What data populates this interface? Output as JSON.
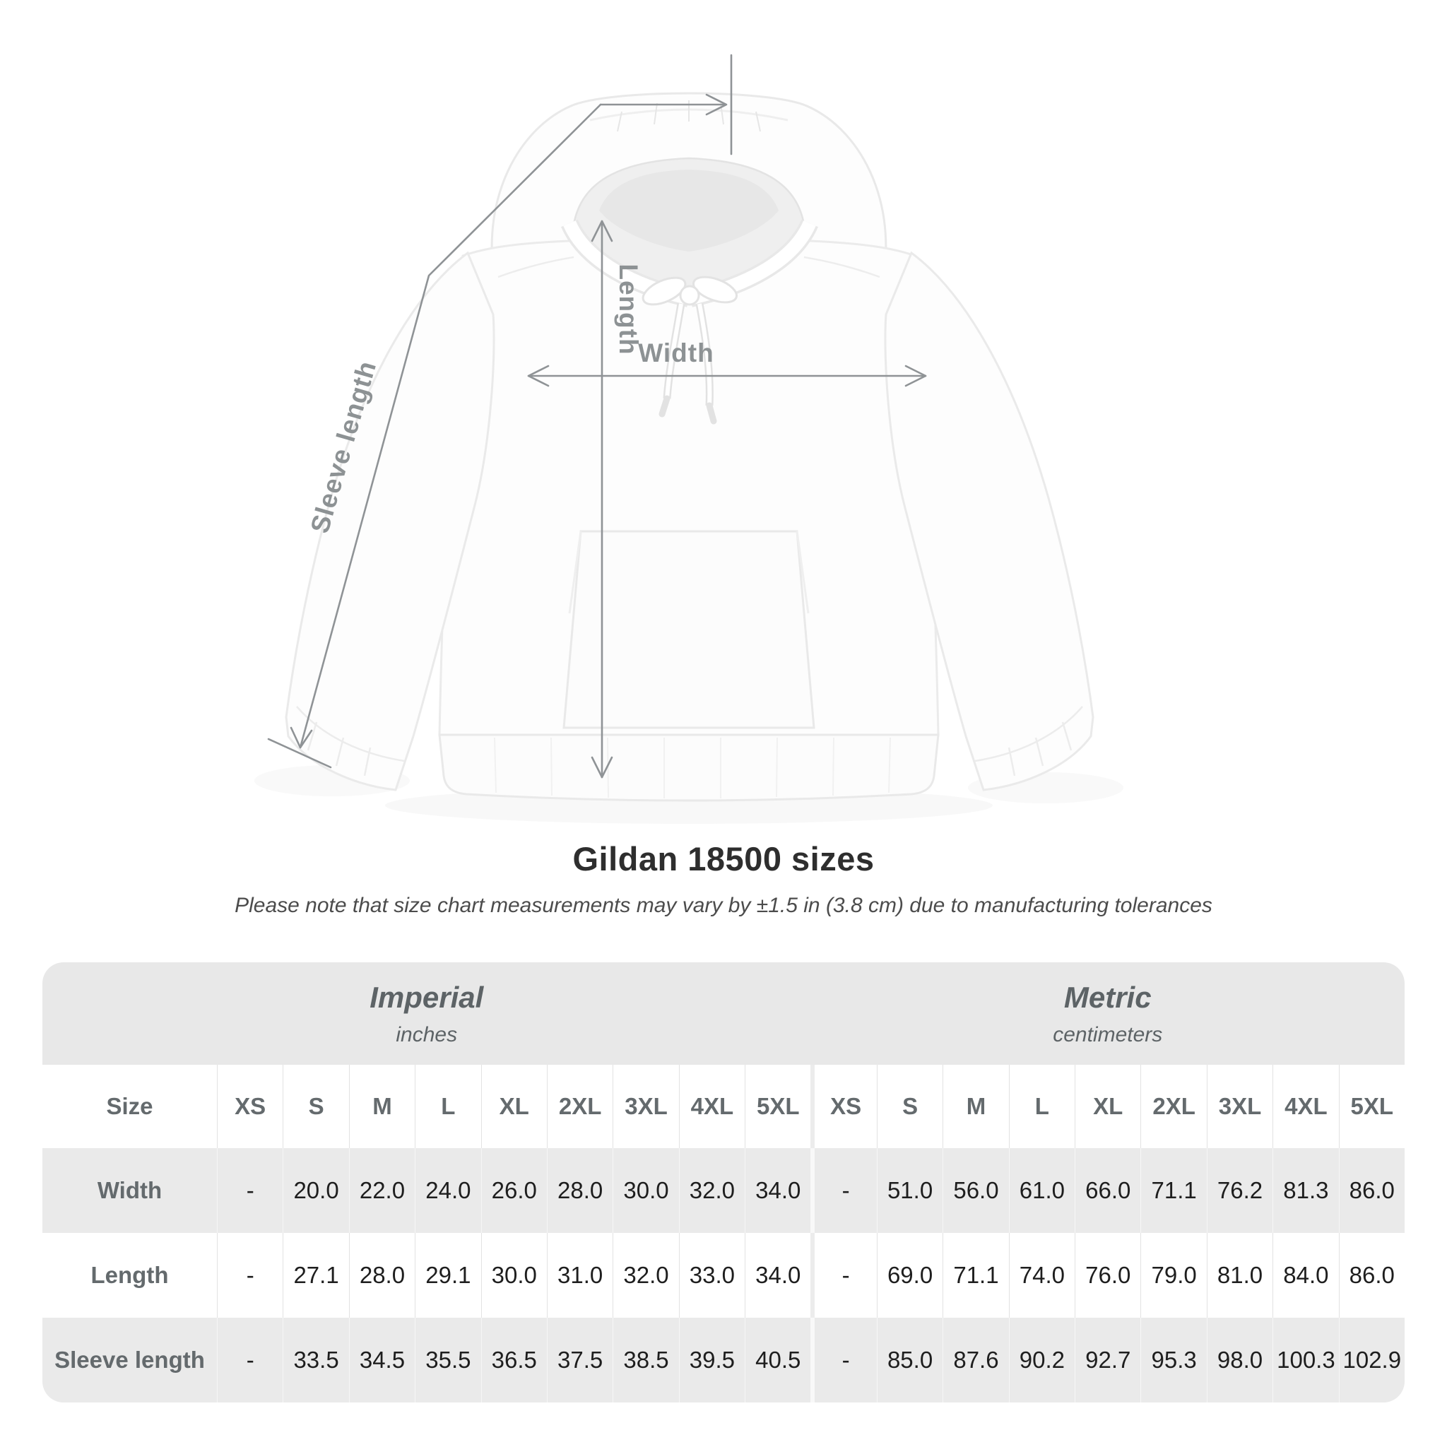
{
  "diagram": {
    "labels": {
      "length": "Length",
      "width": "Width",
      "sleeve_length": "Sleeve length"
    },
    "product": "white pullover hoodie flat-lay photo"
  },
  "title": "Gildan 18500 sizes",
  "subtitle": "Please note that size chart measurements may vary by ±1.5 in (3.8 cm) due to manufacturing tolerances",
  "table": {
    "unit_groups": [
      {
        "name": "Imperial",
        "unit": "inches"
      },
      {
        "name": "Metric",
        "unit": "centimeters"
      }
    ],
    "size_header": "Size",
    "sizes": [
      "XS",
      "S",
      "M",
      "L",
      "XL",
      "2XL",
      "3XL",
      "4XL",
      "5XL"
    ],
    "rows": [
      {
        "label": "Width",
        "imperial": [
          "-",
          "20.0",
          "22.0",
          "24.0",
          "26.0",
          "28.0",
          "30.0",
          "32.0",
          "34.0"
        ],
        "metric": [
          "-",
          "51.0",
          "56.0",
          "61.0",
          "66.0",
          "71.1",
          "76.2",
          "81.3",
          "86.0"
        ]
      },
      {
        "label": "Length",
        "imperial": [
          "-",
          "27.1",
          "28.0",
          "29.1",
          "30.0",
          "31.0",
          "32.0",
          "33.0",
          "34.0"
        ],
        "metric": [
          "-",
          "69.0",
          "71.1",
          "74.0",
          "76.0",
          "79.0",
          "81.0",
          "84.0",
          "86.0"
        ]
      },
      {
        "label": "Sleeve length",
        "imperial": [
          "-",
          "33.5",
          "34.5",
          "35.5",
          "36.5",
          "37.5",
          "38.5",
          "39.5",
          "40.5"
        ],
        "metric": [
          "-",
          "85.0",
          "87.6",
          "90.2",
          "92.7",
          "95.3",
          "98.0",
          "100.3",
          "102.9"
        ]
      }
    ]
  },
  "colors": {
    "page_bg": "#ffffff",
    "band_bg": "#e8e8e8",
    "row_alt_bg": "#eaeaea",
    "header_text": "#646a6d",
    "value_text": "#1e1e1e",
    "annotation": "#8d9294",
    "title_text": "#2e2e2e"
  }
}
